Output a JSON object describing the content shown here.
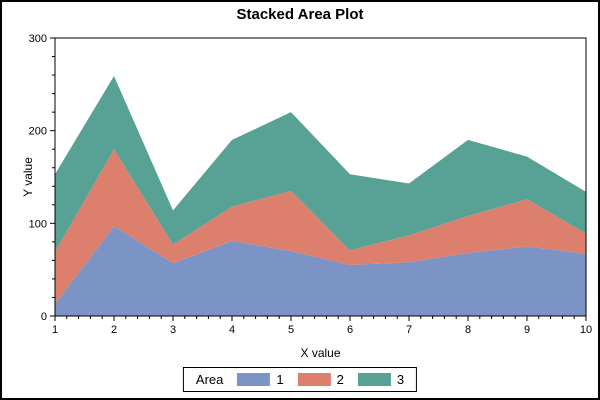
{
  "chart_data": {
    "type": "area",
    "stacked": true,
    "title": "Stacked Area Plot",
    "xlabel": "X value",
    "ylabel": "Y value",
    "x": [
      1,
      2,
      3,
      4,
      5,
      6,
      7,
      8,
      9,
      10
    ],
    "xlim": [
      1,
      10
    ],
    "ylim": [
      0,
      300
    ],
    "y_major_ticks": [
      0,
      100,
      200,
      300
    ],
    "y_minor_step": 20,
    "x_minor_step": 0.2,
    "grid": false,
    "series": [
      {
        "name": "1",
        "color": "#7b93c5",
        "values": [
          13,
          97,
          57,
          81,
          70,
          55,
          58,
          68,
          75,
          67
        ]
      },
      {
        "name": "2",
        "color": "#dd7f6d",
        "values": [
          56,
          83,
          20,
          37,
          65,
          16,
          29,
          40,
          51,
          22
        ]
      },
      {
        "name": "3",
        "color": "#57a294",
        "values": [
          84,
          79,
          37,
          72,
          85,
          82,
          56,
          82,
          46,
          45
        ]
      }
    ],
    "cumulative_tops": {
      "series_1": [
        13,
        97,
        57,
        81,
        70,
        55,
        58,
        68,
        75,
        67
      ],
      "series_2": [
        69,
        180,
        77,
        118,
        135,
        71,
        87,
        108,
        126,
        89
      ],
      "series_3": [
        153,
        259,
        114,
        190,
        220,
        153,
        143,
        190,
        172,
        134
      ]
    },
    "legend_position": "bottom"
  },
  "legend": {
    "title": "Area",
    "items": [
      {
        "label": "1",
        "color": "#7b93c5"
      },
      {
        "label": "2",
        "color": "#dd7f6d"
      },
      {
        "label": "3",
        "color": "#57a294"
      }
    ]
  },
  "colors": {
    "axis": "#000000",
    "text": "#000000",
    "background": "#ffffff"
  }
}
